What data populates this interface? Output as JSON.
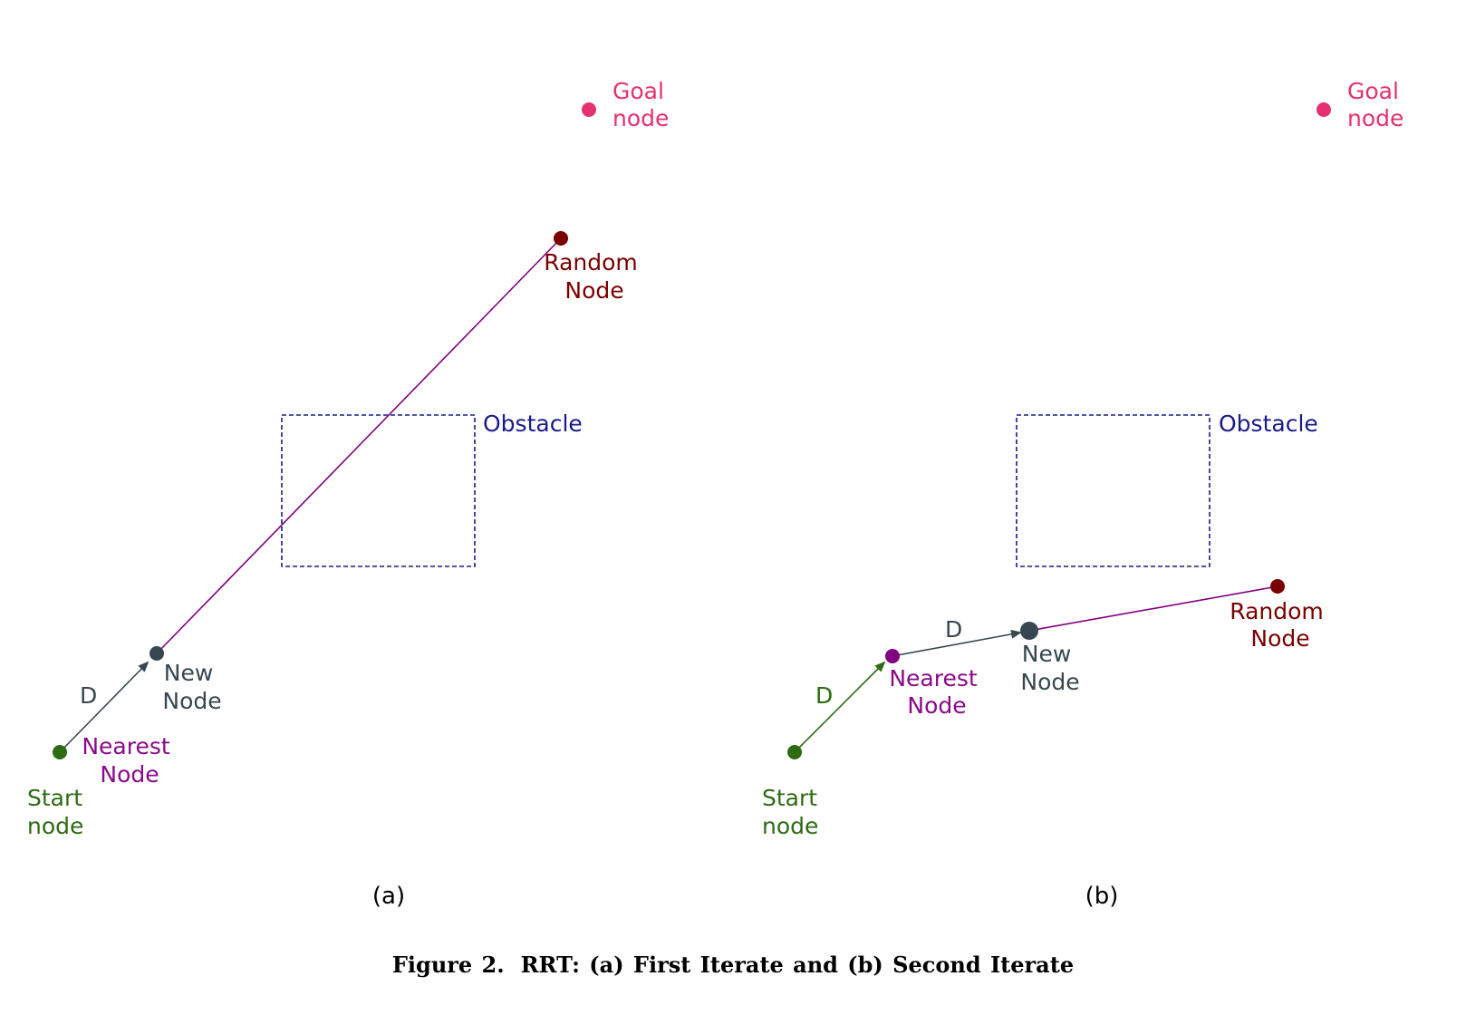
{
  "colors": {
    "goal": "#e6306f",
    "random": "#7a0000",
    "new": "#37474f",
    "nearest": "#8a0a8a",
    "start": "#2e6b12",
    "obstacle": "#1a1a8c",
    "connector": "#800080"
  },
  "panels": [
    {
      "id": "a",
      "sub_label": "(a)",
      "goal_label": [
        "Goal",
        "node"
      ],
      "random_label": [
        "Random",
        "Node"
      ],
      "obstacle_label": "Obstacle",
      "new_label": [
        "New",
        "Node"
      ],
      "nearest_label": [
        "Nearest",
        "Node"
      ],
      "start_label": [
        "Start",
        "node"
      ],
      "step_labels": [
        "D"
      ]
    },
    {
      "id": "b",
      "sub_label": "(b)",
      "goal_label": [
        "Goal",
        "node"
      ],
      "random_label": [
        "Random",
        "Node"
      ],
      "obstacle_label": "Obstacle",
      "new_label": [
        "New",
        "Node"
      ],
      "nearest_label": [
        "Nearest",
        "Node"
      ],
      "start_label": [
        "Start",
        "node"
      ],
      "step_labels": [
        "D",
        "D"
      ]
    }
  ],
  "caption": {
    "number": "Figure 2.",
    "text": "RRT: (a) First Iterate and (b) Second Iterate"
  }
}
